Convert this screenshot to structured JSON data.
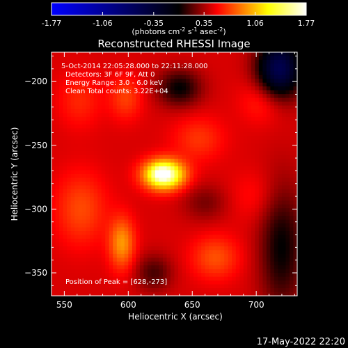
{
  "colorbar": {
    "ticks": [
      {
        "label": "-1.77",
        "value": -1.77
      },
      {
        "label": "-1.06",
        "value": -1.06
      },
      {
        "label": "-0.35",
        "value": -0.35
      },
      {
        "label": "0.35",
        "value": 0.35
      },
      {
        "label": "1.06",
        "value": 1.06
      },
      {
        "label": "1.77",
        "value": 1.77
      }
    ],
    "range": [
      -1.77,
      1.77
    ],
    "unit_prefix": "(photons cm",
    "unit_exp1": "-2",
    "unit_mid": " s",
    "unit_exp2": "-1",
    "unit_mid2": " asec",
    "unit_exp3": "-2",
    "unit_suffix": ")",
    "colors": [
      "#0000ff",
      "#000000",
      "#ff0000",
      "#ffff00",
      "#ffffff"
    ]
  },
  "chart_data": {
    "type": "heatmap",
    "title": "Reconstructed RHESSI Image",
    "xlabel": "Heliocentric X (arcsec)",
    "ylabel": "Heliocentric Y (arcsec)",
    "xlim": [
      540,
      732
    ],
    "ylim": [
      -368,
      -177
    ],
    "x_ticks": [
      550,
      600,
      650,
      700
    ],
    "y_ticks": [
      -200,
      -250,
      -300,
      -350
    ],
    "x_tick_labels": [
      "550",
      "600",
      "650",
      "700"
    ],
    "y_tick_labels": [
      "−200",
      "−250",
      "−300",
      "−350"
    ],
    "annotations": [
      "5-Oct-2014 22:05:28.000 to 22:11:28.000",
      "Detectors: 3F 6F 9F, Att 0",
      "Energy Range: 3.0 - 6.0 keV",
      "Clean    Total counts: 3.22E+04"
    ],
    "peak_label": "Position of Peak = [628,-273]",
    "peak": {
      "x": 628,
      "y": -273,
      "value": 1.77
    },
    "background_value": 0.45,
    "sources": [
      {
        "x": 628,
        "y": -273,
        "sx": 11,
        "sy": 8,
        "amp": 1.3
      },
      {
        "x": 626,
        "y": -272,
        "sx": 5,
        "sy": 4,
        "amp": 0.25
      },
      {
        "x": 595,
        "y": -327,
        "sx": 7,
        "sy": 14,
        "amp": 0.5
      },
      {
        "x": 668,
        "y": -338,
        "sx": 13,
        "sy": 12,
        "amp": 0.3
      },
      {
        "x": 598,
        "y": -213,
        "sx": 9,
        "sy": 12,
        "amp": 0.25
      },
      {
        "x": 563,
        "y": -300,
        "sx": 14,
        "sy": 20,
        "amp": 0.28
      },
      {
        "x": 655,
        "y": -245,
        "sx": 14,
        "sy": 12,
        "amp": 0.22
      },
      {
        "x": 705,
        "y": -215,
        "sx": 12,
        "sy": 12,
        "amp": 0.2
      },
      {
        "x": 562,
        "y": -215,
        "sx": 12,
        "sy": 15,
        "amp": 0.18
      },
      {
        "x": 700,
        "y": -290,
        "sx": 14,
        "sy": 14,
        "amp": 0.12
      },
      {
        "x": 640,
        "y": -205,
        "sx": 12,
        "sy": 10,
        "amp": -0.45
      },
      {
        "x": 718,
        "y": -190,
        "sx": 12,
        "sy": 16,
        "amp": -1.0
      },
      {
        "x": 720,
        "y": -330,
        "sx": 12,
        "sy": 35,
        "amp": -0.45
      },
      {
        "x": 620,
        "y": -350,
        "sx": 10,
        "sy": 10,
        "amp": -0.3
      },
      {
        "x": 660,
        "y": -295,
        "sx": 12,
        "sy": 10,
        "amp": -0.2
      }
    ]
  },
  "footer": {
    "date": "17-May-2022 22:20"
  }
}
